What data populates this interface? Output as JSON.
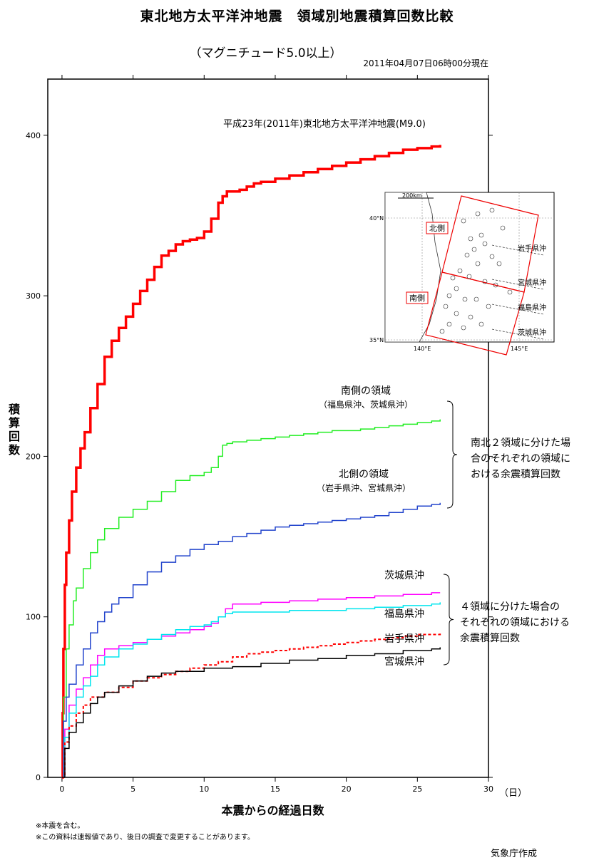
{
  "header": {
    "title": "東北地方太平洋沖地震　領域別地震積算回数比較",
    "subtitle": "（マグニチュード5.0以上）",
    "timestamp": "2011年04月07日06時00分現在"
  },
  "footer": {
    "note1": "※本震を含む。",
    "note2": "※この資料は速報値であり、後日の調査で変更することがあります。",
    "credit": "気象庁作成"
  },
  "chart_data": {
    "type": "line",
    "title": "東北地方太平洋沖地震　領域別地震積算回数比較",
    "xlabel": "本震からの経過日数",
    "xunit": "（日）",
    "ylabel": "積算回数",
    "xlim": [
      -1,
      30
    ],
    "ylim": [
      0,
      435
    ],
    "xticks": [
      0,
      5,
      10,
      15,
      20,
      25,
      30
    ],
    "yticks": [
      0,
      100,
      200,
      300,
      400
    ],
    "grid": false,
    "series": [
      {
        "name": "平成23年(2011年)東北地方太平洋沖地震(M9.0)",
        "color": "#ff0000",
        "style": "solid",
        "width": 3.5,
        "x": [
          0,
          0.05,
          0.1,
          0.2,
          0.3,
          0.5,
          0.7,
          1.0,
          1.3,
          1.6,
          2.0,
          2.5,
          3.0,
          3.5,
          4.0,
          4.5,
          5.0,
          5.5,
          6.0,
          6.5,
          7.0,
          7.5,
          8.0,
          8.5,
          9.0,
          9.5,
          10.0,
          10.5,
          11.0,
          11.3,
          11.6,
          12.0,
          12.5,
          13.0,
          13.5,
          14.0,
          15.0,
          16.0,
          17.0,
          18.0,
          19.0,
          20.0,
          21.0,
          22.0,
          23.0,
          24.0,
          25.0,
          26.0,
          26.6
        ],
        "y": [
          0,
          40,
          80,
          120,
          140,
          160,
          178,
          193,
          205,
          215,
          230,
          245,
          262,
          272,
          280,
          287,
          295,
          303,
          310,
          318,
          325,
          328,
          332,
          334,
          335,
          336,
          340,
          348,
          358,
          362,
          365,
          365,
          366,
          368,
          370,
          371,
          373,
          375,
          377,
          379,
          381,
          383,
          385,
          387,
          389,
          391,
          392,
          393,
          394
        ]
      },
      {
        "name": "南側の領域",
        "label_sub": "（福島県沖、茨城県沖）",
        "color": "#22ee22",
        "style": "solid",
        "width": 1.5,
        "x": [
          0,
          0.1,
          0.3,
          0.5,
          0.8,
          1.0,
          1.5,
          2.0,
          2.5,
          3.0,
          4.0,
          5.0,
          6.0,
          7.0,
          8.0,
          9.0,
          10.0,
          10.5,
          11.0,
          11.3,
          11.6,
          12.0,
          13.0,
          14.0,
          15.0,
          16.0,
          17.0,
          18.0,
          19.0,
          20.0,
          21.0,
          22.0,
          23.0,
          24.0,
          25.0,
          26.0,
          26.6
        ],
        "y": [
          0,
          50,
          80,
          95,
          110,
          118,
          130,
          140,
          148,
          155,
          162,
          167,
          172,
          178,
          185,
          188,
          190,
          193,
          200,
          207,
          208,
          209,
          210,
          211,
          212,
          213,
          214,
          215,
          216,
          216,
          217,
          218,
          219,
          220,
          221,
          222,
          223
        ]
      },
      {
        "name": "北側の領域",
        "label_sub": "（岩手県沖、宮城県沖）",
        "color": "#2244cc",
        "style": "solid",
        "width": 1.5,
        "x": [
          0,
          0.1,
          0.3,
          0.5,
          1.0,
          1.5,
          2.0,
          2.5,
          3.0,
          3.5,
          4.0,
          5.0,
          6.0,
          7.0,
          8.0,
          9.0,
          10.0,
          11.0,
          12.0,
          13.0,
          14.0,
          15.0,
          16.0,
          17.0,
          18.0,
          19.0,
          20.0,
          21.0,
          22.0,
          23.0,
          24.0,
          25.0,
          26.0,
          26.6
        ],
        "y": [
          0,
          35,
          50,
          58,
          70,
          80,
          90,
          97,
          103,
          108,
          112,
          120,
          128,
          134,
          138,
          142,
          145,
          147,
          150,
          152,
          154,
          156,
          157,
          158,
          159,
          160,
          161,
          162,
          163,
          165,
          167,
          169,
          170,
          171
        ]
      },
      {
        "name": "茨城県沖",
        "color": "#ff00ff",
        "style": "solid",
        "width": 1.5,
        "x": [
          0,
          0.2,
          0.5,
          1.0,
          1.5,
          2.0,
          2.5,
          3.0,
          4.0,
          5.0,
          6.0,
          7.0,
          8.0,
          9.0,
          10.0,
          10.5,
          11.0,
          11.5,
          12.0,
          14.0,
          16.0,
          18.0,
          20.0,
          22.0,
          24.0,
          26.0,
          26.6
        ],
        "y": [
          0,
          30,
          45,
          55,
          62,
          70,
          76,
          80,
          82,
          84,
          86,
          88,
          90,
          92,
          94,
          96,
          100,
          105,
          108,
          109,
          110,
          111,
          112,
          113,
          114,
          115,
          115
        ]
      },
      {
        "name": "福島県沖",
        "color": "#00e5ee",
        "style": "solid",
        "width": 1.5,
        "x": [
          0,
          0.2,
          0.5,
          1.0,
          1.5,
          2.0,
          2.5,
          3.0,
          4.0,
          5.0,
          6.0,
          7.0,
          8.0,
          9.0,
          10.0,
          10.5,
          11.0,
          11.5,
          12.0,
          14.0,
          16.0,
          18.0,
          20.0,
          22.0,
          24.0,
          26.0,
          26.6
        ],
        "y": [
          0,
          25,
          40,
          50,
          57,
          63,
          70,
          75,
          80,
          83,
          86,
          89,
          92,
          94,
          95,
          97,
          100,
          102,
          103,
          103,
          104,
          104,
          105,
          106,
          107,
          108,
          109
        ]
      },
      {
        "name": "岩手県沖",
        "color": "#ff0000",
        "style": "dotted",
        "width": 2,
        "x": [
          0,
          0.2,
          0.5,
          1.0,
          1.5,
          2.0,
          3.0,
          4.0,
          5.0,
          6.0,
          7.0,
          8.0,
          9.0,
          10.0,
          11.0,
          12.0,
          13.0,
          14.0,
          15.0,
          16.0,
          17.0,
          18.0,
          19.0,
          20.0,
          21.0,
          22.0,
          23.0,
          24.0,
          25.0,
          26.0,
          26.6
        ],
        "y": [
          0,
          22,
          32,
          40,
          45,
          50,
          53,
          56,
          60,
          62,
          64,
          66,
          68,
          70,
          72,
          75,
          77,
          78,
          79,
          80,
          81,
          82,
          83,
          84,
          85,
          86,
          87,
          88,
          89,
          89,
          90
        ]
      },
      {
        "name": "宮城県沖",
        "color": "#000000",
        "style": "solid",
        "width": 1.5,
        "x": [
          0,
          0.2,
          0.5,
          1.0,
          1.5,
          2.0,
          2.5,
          3.0,
          4.0,
          5.0,
          6.0,
          7.0,
          8.0,
          10.0,
          12.0,
          14.0,
          16.0,
          18.0,
          20.0,
          22.0,
          24.0,
          26.0,
          26.6
        ],
        "y": [
          0,
          18,
          28,
          34,
          40,
          46,
          50,
          53,
          57,
          60,
          63,
          65,
          66,
          68,
          69,
          71,
          73,
          74,
          76,
          77,
          79,
          80,
          81
        ]
      }
    ],
    "labels": {
      "m9": "平成23年(2011年)東北地方太平洋沖地震(M9.0)",
      "south_title": "南側の領域",
      "south_sub": "（福島県沖、茨城県沖）",
      "north_title": "北側の領域",
      "north_sub": "（岩手県沖、宮城県沖）",
      "ibaraki": "茨城県沖",
      "fukushima": "福島県沖",
      "iwate": "岩手県沖",
      "miyagi": "宮城県沖"
    },
    "group_notes": {
      "two_regions": [
        "南北２領域に分けた場",
        "合のそれぞれの領域に",
        "おける余震積算回数"
      ],
      "four_regions": [
        "４領域に分けた場合の",
        "それぞれの領域における",
        "余震積算回数"
      ]
    },
    "inset_map": {
      "scale": "200km",
      "lat_labels": [
        "40°N",
        "35°N"
      ],
      "lon_labels": [
        "140°E",
        "145°E"
      ],
      "north_box_label": "北側",
      "south_box_label": "南側",
      "region_labels": [
        "岩手県沖",
        "宮城県沖",
        "福島県沖",
        "茨城県沖"
      ]
    }
  }
}
